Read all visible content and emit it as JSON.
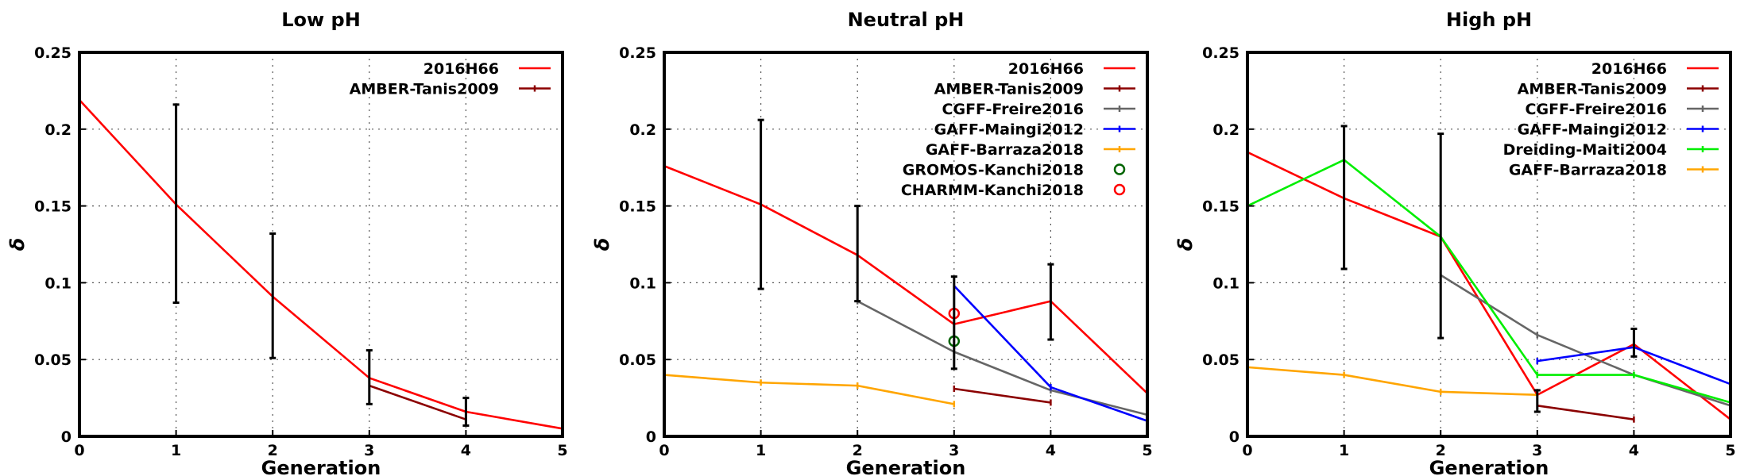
{
  "colors": {
    "2016H66": "#ff0000",
    "AMBER-Tanis2009": "#8b0000",
    "CGFF-Freire2016": "#666666",
    "GAFF-Maingi2012": "#0000ff",
    "GAFF-Barraza2018": "#ffa500",
    "Dreiding-Maiti2004": "#00ee00",
    "GROMOS-Kanchi2018": "#006400",
    "CHARMM-Kanchi2018": "#ff0000",
    "error_bars": "#000000"
  },
  "chart_data": [
    {
      "type": "line",
      "title": "Low pH",
      "xlabel": "Generation",
      "ylabel": "δ",
      "xlim": [
        0,
        5
      ],
      "ylim": [
        0,
        0.25
      ],
      "xticks": [
        "0",
        "1",
        "2",
        "3",
        "4",
        "5"
      ],
      "yticks": [
        "0",
        "0.05",
        "0.1",
        "0.15",
        "0.2",
        "0.25"
      ],
      "grid": true,
      "legend_position": "top-right",
      "series": [
        {
          "name": "2016H66",
          "style": "line",
          "x": [
            0,
            1,
            2,
            3,
            4,
            5
          ],
          "y": [
            0.219,
            0.151,
            0.091,
            0.038,
            0.016,
            0.005
          ]
        },
        {
          "name": "AMBER-Tanis2009",
          "style": "line-points",
          "x": [
            3,
            4
          ],
          "y": [
            0.033,
            0.011
          ]
        }
      ],
      "error_bars": [
        {
          "x": 1,
          "low": 0.087,
          "high": 0.216
        },
        {
          "x": 2,
          "low": 0.051,
          "high": 0.132
        },
        {
          "x": 3,
          "low": 0.021,
          "high": 0.056
        },
        {
          "x": 4,
          "low": 0.007,
          "high": 0.025
        }
      ]
    },
    {
      "type": "line",
      "title": "Neutral pH",
      "xlabel": "Generation",
      "ylabel": "δ",
      "xlim": [
        0,
        5
      ],
      "ylim": [
        0,
        0.25
      ],
      "xticks": [
        "0",
        "1",
        "2",
        "3",
        "4",
        "5"
      ],
      "yticks": [
        "0",
        "0.05",
        "0.1",
        "0.15",
        "0.2",
        "0.25"
      ],
      "grid": true,
      "legend_position": "top-right",
      "series": [
        {
          "name": "2016H66",
          "style": "line",
          "x": [
            0,
            1,
            2,
            3,
            4,
            5
          ],
          "y": [
            0.176,
            0.151,
            0.118,
            0.073,
            0.088,
            0.028
          ]
        },
        {
          "name": "AMBER-Tanis2009",
          "style": "line-points",
          "x": [
            3,
            4
          ],
          "y": [
            0.031,
            0.022
          ]
        },
        {
          "name": "CGFF-Freire2016",
          "style": "line-points",
          "x": [
            2,
            3,
            4,
            5
          ],
          "y": [
            0.088,
            0.055,
            0.03,
            0.014
          ]
        },
        {
          "name": "GAFF-Maingi2012",
          "style": "line-points",
          "x": [
            3,
            4,
            5
          ],
          "y": [
            0.098,
            0.032,
            0.01
          ]
        },
        {
          "name": "GAFF-Barraza2018",
          "style": "line-points",
          "x": [
            0,
            1,
            2,
            3
          ],
          "y": [
            0.04,
            0.035,
            0.033,
            0.021
          ]
        },
        {
          "name": "GROMOS-Kanchi2018",
          "style": "circle",
          "x": [
            3
          ],
          "y": [
            0.062
          ]
        },
        {
          "name": "CHARMM-Kanchi2018",
          "style": "circle",
          "x": [
            3
          ],
          "y": [
            0.08
          ]
        }
      ],
      "error_bars": [
        {
          "x": 1,
          "low": 0.096,
          "high": 0.206
        },
        {
          "x": 2,
          "low": 0.088,
          "high": 0.15
        },
        {
          "x": 3,
          "low": 0.044,
          "high": 0.104
        },
        {
          "x": 4,
          "low": 0.063,
          "high": 0.112
        }
      ]
    },
    {
      "type": "line",
      "title": "High pH",
      "xlabel": "Generation",
      "ylabel": "δ",
      "xlim": [
        0,
        5
      ],
      "ylim": [
        0,
        0.25
      ],
      "xticks": [
        "0",
        "1",
        "2",
        "3",
        "4",
        "5"
      ],
      "yticks": [
        "0",
        "0.05",
        "0.1",
        "0.15",
        "0.2",
        "0.25"
      ],
      "grid": true,
      "legend_position": "top-right",
      "series": [
        {
          "name": "2016H66",
          "style": "line",
          "x": [
            0,
            1,
            2,
            3,
            4,
            5
          ],
          "y": [
            0.185,
            0.155,
            0.13,
            0.027,
            0.06,
            0.011
          ]
        },
        {
          "name": "AMBER-Tanis2009",
          "style": "line-points",
          "x": [
            3,
            4
          ],
          "y": [
            0.02,
            0.011
          ]
        },
        {
          "name": "CGFF-Freire2016",
          "style": "line-points",
          "x": [
            2,
            3,
            4,
            5
          ],
          "y": [
            0.105,
            0.066,
            0.04,
            0.02
          ]
        },
        {
          "name": "GAFF-Maingi2012",
          "style": "line-points",
          "x": [
            3,
            4,
            5
          ],
          "y": [
            0.049,
            0.058,
            0.034
          ]
        },
        {
          "name": "Dreiding-Maiti2004",
          "style": "line-points",
          "x": [
            0,
            1,
            2,
            3,
            4,
            5
          ],
          "y": [
            0.15,
            0.18,
            0.13,
            0.04,
            0.04,
            0.022
          ]
        },
        {
          "name": "GAFF-Barraza2018",
          "style": "line-points",
          "x": [
            0,
            1,
            2,
            3
          ],
          "y": [
            0.045,
            0.04,
            0.029,
            0.027
          ]
        }
      ],
      "error_bars": [
        {
          "x": 1,
          "low": 0.109,
          "high": 0.202
        },
        {
          "x": 2,
          "low": 0.064,
          "high": 0.197
        },
        {
          "x": 3,
          "low": 0.016,
          "high": 0.03
        },
        {
          "x": 4,
          "low": 0.052,
          "high": 0.07
        }
      ]
    }
  ]
}
